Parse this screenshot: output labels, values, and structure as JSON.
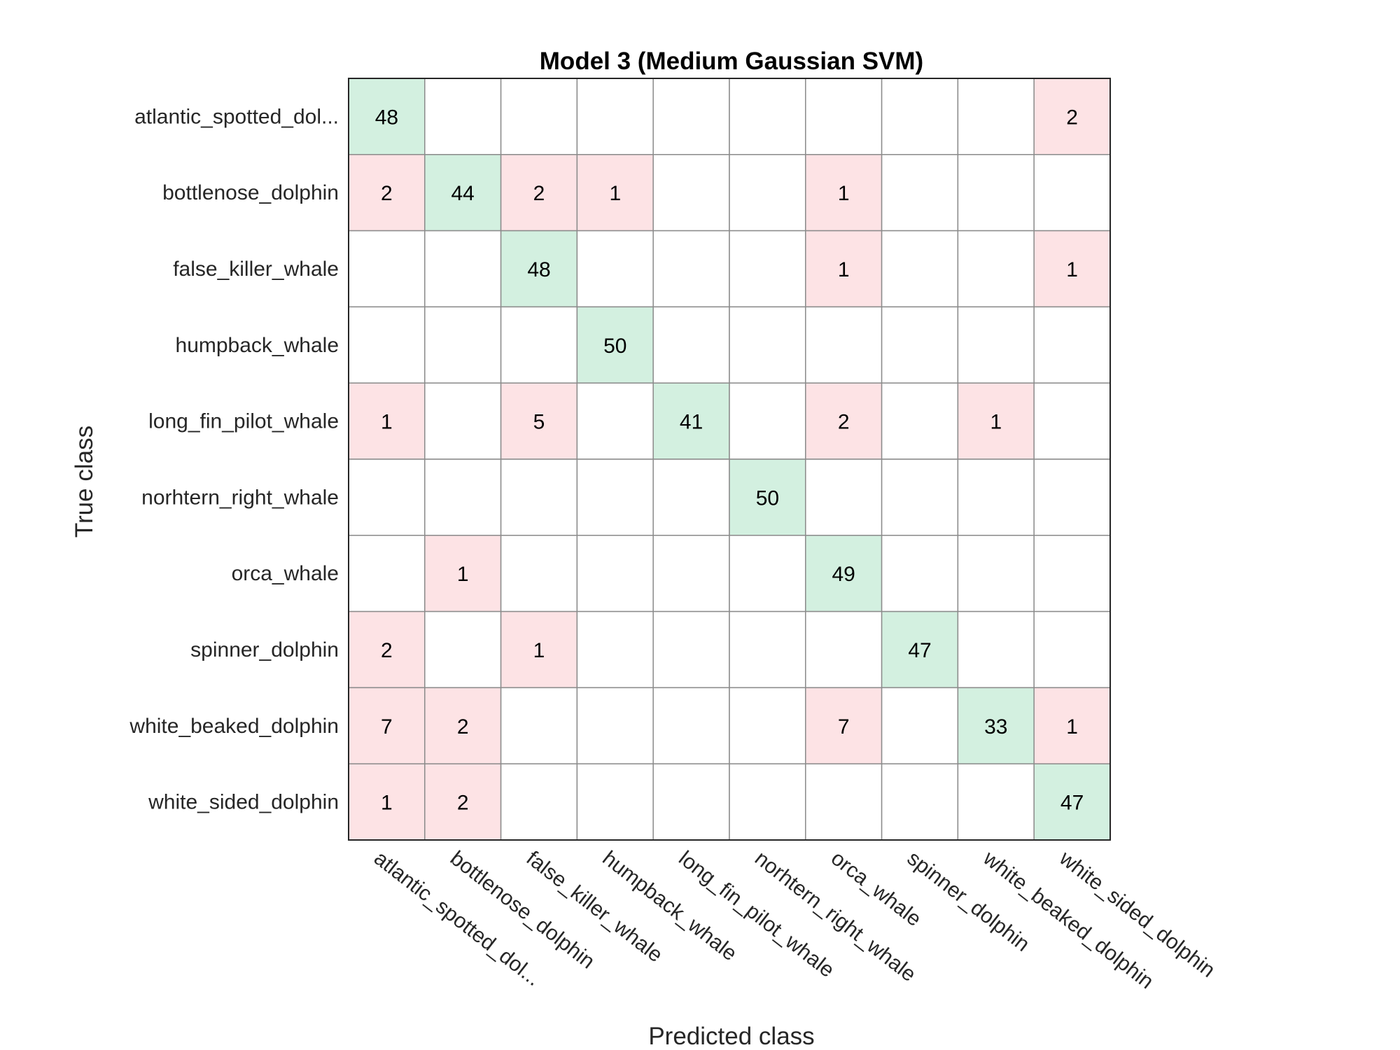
{
  "chart_data": {
    "type": "heatmap",
    "title": "Model 3 (Medium Gaussian SVM)",
    "xlabel": "Predicted class",
    "ylabel": "True class",
    "row_labels": [
      "atlantic_spotted_dol...",
      "bottlenose_dolphin",
      "false_killer_whale",
      "humpback_whale",
      "long_fin_pilot_whale",
      "norhtern_right_whale",
      "orca_whale",
      "spinner_dolphin",
      "white_beaked_dolphin",
      "white_sided_dolphin"
    ],
    "col_labels": [
      "atlantic_spotted_dol...",
      "bottlenose_dolphin",
      "false_killer_whale",
      "humpback_whale",
      "long_fin_pilot_whale",
      "norhtern_right_whale",
      "orca_whale",
      "spinner_dolphin",
      "white_beaked_dolphin",
      "white_sided_dolphin"
    ],
    "matrix": [
      [
        48,
        0,
        0,
        0,
        0,
        0,
        0,
        0,
        0,
        2
      ],
      [
        2,
        44,
        2,
        1,
        0,
        0,
        1,
        0,
        0,
        0
      ],
      [
        0,
        0,
        48,
        0,
        0,
        0,
        1,
        0,
        0,
        1
      ],
      [
        0,
        0,
        0,
        50,
        0,
        0,
        0,
        0,
        0,
        0
      ],
      [
        1,
        0,
        5,
        0,
        41,
        0,
        2,
        0,
        1,
        0
      ],
      [
        0,
        0,
        0,
        0,
        0,
        50,
        0,
        0,
        0,
        0
      ],
      [
        0,
        1,
        0,
        0,
        0,
        0,
        49,
        0,
        0,
        0
      ],
      [
        2,
        0,
        1,
        0,
        0,
        0,
        0,
        47,
        0,
        0
      ],
      [
        7,
        2,
        0,
        0,
        0,
        0,
        7,
        0,
        33,
        1
      ],
      [
        1,
        2,
        0,
        0,
        0,
        0,
        0,
        0,
        0,
        47
      ]
    ],
    "colors": {
      "correct": "#d3f0e0",
      "incorrect": "#fde3e5",
      "empty": "#ffffff",
      "grid": "#8c8c8c",
      "border": "#262626"
    }
  }
}
